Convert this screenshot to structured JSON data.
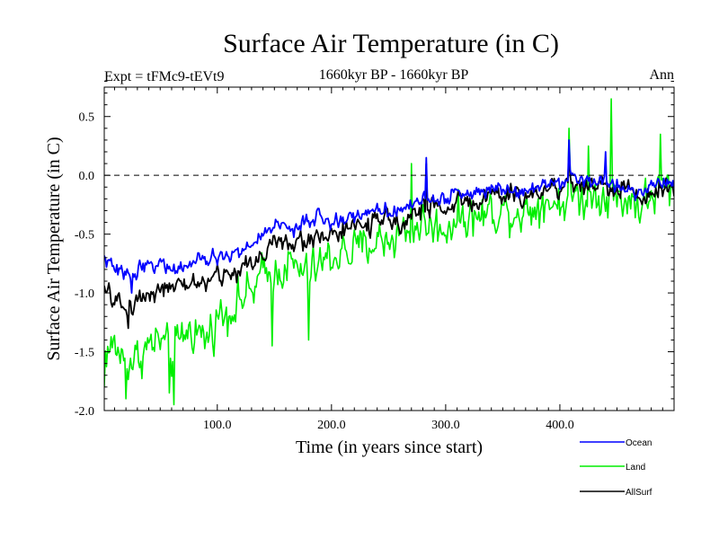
{
  "chart_data": {
    "type": "line",
    "title": "Surface Air Temperature (in C)",
    "subtitle_left": "Expt = tFMc9-tEVt9",
    "subtitle_center": "1660kyr BP - 1660kyr BP",
    "subtitle_right": "Ann",
    "xlabel": "Time (in years since start)",
    "ylabel": "Surface Air Temperature (in C)",
    "xlim": [
      1,
      500
    ],
    "ylim": [
      -2.0,
      0.75
    ],
    "x_ticks": [
      100,
      200,
      300,
      400
    ],
    "x_tick_labels": [
      "100.0",
      "200.0",
      "300.0",
      "400.0"
    ],
    "y_ticks": [
      -2.0,
      -1.5,
      -1.0,
      -0.5,
      0.0,
      0.5
    ],
    "y_tick_labels": [
      "-2.0",
      "-1.5",
      "-1.0",
      "-0.5",
      "0.0",
      "0.5"
    ],
    "reference_line": 0.0,
    "series": [
      {
        "name": "Land",
        "color": "#00ee00",
        "anchors": [
          [
            1,
            -1.5
          ],
          [
            10,
            -1.45
          ],
          [
            20,
            -1.6
          ],
          [
            30,
            -1.55
          ],
          [
            40,
            -1.45
          ],
          [
            50,
            -1.4
          ],
          [
            60,
            -1.55
          ],
          [
            70,
            -1.35
          ],
          [
            80,
            -1.3
          ],
          [
            90,
            -1.4
          ],
          [
            100,
            -1.2
          ],
          [
            110,
            -1.15
          ],
          [
            120,
            -1.05
          ],
          [
            130,
            -1.0
          ],
          [
            140,
            -0.85
          ],
          [
            150,
            -0.85
          ],
          [
            160,
            -0.75
          ],
          [
            170,
            -0.8
          ],
          [
            180,
            -0.85
          ],
          [
            190,
            -0.75
          ],
          [
            200,
            -0.7
          ],
          [
            210,
            -0.65
          ],
          [
            220,
            -0.65
          ],
          [
            230,
            -0.6
          ],
          [
            240,
            -0.55
          ],
          [
            250,
            -0.55
          ],
          [
            260,
            -0.5
          ],
          [
            270,
            -0.45
          ],
          [
            280,
            -0.4
          ],
          [
            290,
            -0.45
          ],
          [
            300,
            -0.45
          ],
          [
            310,
            -0.35
          ],
          [
            320,
            -0.35
          ],
          [
            330,
            -0.35
          ],
          [
            340,
            -0.3
          ],
          [
            350,
            -0.3
          ],
          [
            360,
            -0.3
          ],
          [
            370,
            -0.3
          ],
          [
            380,
            -0.25
          ],
          [
            390,
            -0.2
          ],
          [
            400,
            -0.25
          ],
          [
            410,
            -0.15
          ],
          [
            420,
            -0.2
          ],
          [
            430,
            -0.15
          ],
          [
            440,
            -0.15
          ],
          [
            450,
            -0.2
          ],
          [
            460,
            -0.2
          ],
          [
            470,
            -0.25
          ],
          [
            480,
            -0.2
          ],
          [
            490,
            -0.1
          ],
          [
            500,
            -0.15
          ]
        ],
        "noise": 0.2,
        "extremes": [
          [
            1,
            -1.8
          ],
          [
            20,
            -1.9
          ],
          [
            62,
            -1.95
          ],
          [
            58,
            -1.85
          ],
          [
            148,
            -1.45
          ],
          [
            180,
            -1.4
          ],
          [
            445,
            0.65
          ],
          [
            408,
            0.4
          ],
          [
            488,
            0.35
          ],
          [
            270,
            0.1
          ],
          [
            425,
            0.25
          ]
        ]
      },
      {
        "name": "Ocean",
        "color": "#0000ff",
        "anchors": [
          [
            1,
            -0.7
          ],
          [
            10,
            -0.8
          ],
          [
            20,
            -0.85
          ],
          [
            30,
            -0.8
          ],
          [
            40,
            -0.75
          ],
          [
            50,
            -0.75
          ],
          [
            60,
            -0.8
          ],
          [
            70,
            -0.78
          ],
          [
            80,
            -0.75
          ],
          [
            90,
            -0.72
          ],
          [
            100,
            -0.7
          ],
          [
            110,
            -0.68
          ],
          [
            120,
            -0.65
          ],
          [
            130,
            -0.6
          ],
          [
            140,
            -0.5
          ],
          [
            150,
            -0.4
          ],
          [
            160,
            -0.45
          ],
          [
            170,
            -0.45
          ],
          [
            180,
            -0.4
          ],
          [
            190,
            -0.35
          ],
          [
            200,
            -0.4
          ],
          [
            210,
            -0.38
          ],
          [
            220,
            -0.35
          ],
          [
            230,
            -0.3
          ],
          [
            240,
            -0.3
          ],
          [
            250,
            -0.3
          ],
          [
            260,
            -0.28
          ],
          [
            270,
            -0.25
          ],
          [
            280,
            -0.2
          ],
          [
            290,
            -0.2
          ],
          [
            300,
            -0.2
          ],
          [
            310,
            -0.15
          ],
          [
            320,
            -0.15
          ],
          [
            330,
            -0.15
          ],
          [
            340,
            -0.1
          ],
          [
            350,
            -0.1
          ],
          [
            360,
            -0.12
          ],
          [
            370,
            -0.12
          ],
          [
            380,
            -0.1
          ],
          [
            390,
            -0.05
          ],
          [
            400,
            -0.05
          ],
          [
            410,
            0.0
          ],
          [
            420,
            -0.05
          ],
          [
            430,
            -0.05
          ],
          [
            440,
            -0.05
          ],
          [
            450,
            -0.1
          ],
          [
            460,
            -0.1
          ],
          [
            470,
            -0.15
          ],
          [
            480,
            -0.1
          ],
          [
            490,
            -0.05
          ],
          [
            500,
            -0.1
          ]
        ],
        "noise": 0.07,
        "extremes": [
          [
            283,
            0.15
          ],
          [
            408,
            0.3
          ],
          [
            440,
            0.2
          ],
          [
            25,
            -1.0
          ]
        ]
      },
      {
        "name": "AllSurf",
        "color": "#000000",
        "anchors": [
          [
            1,
            -1.0
          ],
          [
            10,
            -1.05
          ],
          [
            20,
            -1.15
          ],
          [
            30,
            -1.05
          ],
          [
            40,
            -1.0
          ],
          [
            50,
            -0.95
          ],
          [
            60,
            -0.98
          ],
          [
            70,
            -0.95
          ],
          [
            80,
            -0.9
          ],
          [
            90,
            -0.92
          ],
          [
            100,
            -0.85
          ],
          [
            110,
            -0.85
          ],
          [
            120,
            -0.8
          ],
          [
            130,
            -0.75
          ],
          [
            140,
            -0.65
          ],
          [
            150,
            -0.55
          ],
          [
            160,
            -0.6
          ],
          [
            170,
            -0.58
          ],
          [
            180,
            -0.55
          ],
          [
            190,
            -0.5
          ],
          [
            200,
            -0.5
          ],
          [
            210,
            -0.48
          ],
          [
            220,
            -0.45
          ],
          [
            230,
            -0.42
          ],
          [
            240,
            -0.4
          ],
          [
            250,
            -0.4
          ],
          [
            260,
            -0.38
          ],
          [
            270,
            -0.33
          ],
          [
            280,
            -0.28
          ],
          [
            290,
            -0.28
          ],
          [
            300,
            -0.28
          ],
          [
            310,
            -0.22
          ],
          [
            320,
            -0.22
          ],
          [
            330,
            -0.22
          ],
          [
            340,
            -0.17
          ],
          [
            350,
            -0.17
          ],
          [
            360,
            -0.18
          ],
          [
            370,
            -0.18
          ],
          [
            380,
            -0.15
          ],
          [
            390,
            -0.1
          ],
          [
            400,
            -0.1
          ],
          [
            410,
            -0.05
          ],
          [
            420,
            -0.1
          ],
          [
            430,
            -0.08
          ],
          [
            440,
            -0.08
          ],
          [
            450,
            -0.13
          ],
          [
            460,
            -0.13
          ],
          [
            470,
            -0.18
          ],
          [
            480,
            -0.13
          ],
          [
            490,
            -0.07
          ],
          [
            500,
            -0.12
          ]
        ],
        "noise": 0.1,
        "extremes": [
          [
            22,
            -1.3
          ],
          [
            283,
            0.1
          ],
          [
            408,
            0.2
          ]
        ]
      }
    ],
    "legend": {
      "placement": "bottom-right",
      "entries": [
        {
          "label": "Ocean",
          "color": "#0000ff"
        },
        {
          "label": "Land",
          "color": "#00ee00"
        },
        {
          "label": "AllSurf",
          "color": "#000000"
        }
      ]
    }
  }
}
